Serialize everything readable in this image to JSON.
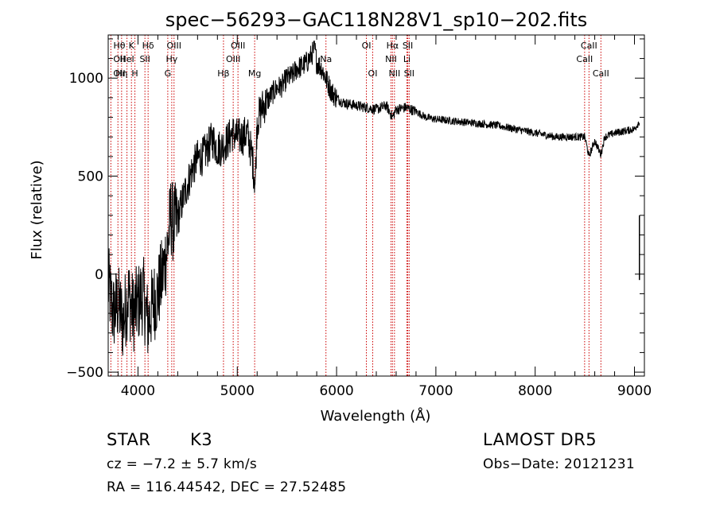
{
  "chart_data": {
    "type": "line",
    "title": "spec−56293−GAC118N28V1_sp10−202.fits",
    "xlabel": "Wavelength (Å)",
    "ylabel": "Flux (relative)",
    "xlim": [
      3700,
      9100
    ],
    "ylim": [
      -520,
      1220
    ],
    "x_ticks": [
      4000,
      5000,
      6000,
      7000,
      8000,
      9000
    ],
    "y_ticks": [
      -500,
      0,
      500,
      1000
    ],
    "x_tick_labels": [
      "4000",
      "5000",
      "6000",
      "7000",
      "8000",
      "9000"
    ],
    "y_tick_labels": [
      "−500",
      "0",
      "500",
      "1000"
    ],
    "grid": false,
    "line_color": "#000000",
    "marker_color": "#cc0000",
    "series": [
      {
        "x": [
          3700,
          3750,
          3800,
          3850,
          3900,
          3950,
          4000,
          4050,
          4100,
          4150,
          4200,
          4250,
          4300,
          4330,
          4360,
          4400,
          4450,
          4500,
          4550,
          4600,
          4650,
          4700,
          4750,
          4800,
          4850,
          4900,
          4950,
          5000,
          5050,
          5100,
          5150,
          5180,
          5200,
          5250,
          5300,
          5350,
          5400,
          5450,
          5500,
          5550,
          5600,
          5650,
          5700,
          5750,
          5780,
          5800,
          5850,
          5890,
          5950,
          6000,
          6050,
          6100,
          6200,
          6300,
          6400,
          6500,
          6563,
          6600,
          6700,
          6800,
          6900,
          7000,
          7200,
          7400,
          7600,
          7800,
          8000,
          8200,
          8400,
          8500,
          8542,
          8600,
          8662,
          8700,
          8800,
          8900,
          9000,
          9050
        ],
        "y": [
          -50,
          -200,
          -150,
          -250,
          -100,
          -200,
          -150,
          -100,
          -250,
          -150,
          -100,
          0,
          150,
          300,
          250,
          280,
          380,
          460,
          540,
          590,
          600,
          640,
          690,
          640,
          650,
          680,
          720,
          700,
          700,
          720,
          600,
          460,
          780,
          850,
          880,
          920,
          950,
          960,
          1000,
          1010,
          1050,
          1060,
          1080,
          1120,
          1150,
          1080,
          1050,
          1000,
          930,
          900,
          880,
          870,
          860,
          850,
          840,
          860,
          800,
          840,
          850,
          830,
          800,
          790,
          780,
          770,
          760,
          740,
          720,
          700,
          700,
          700,
          600,
          680,
          610,
          700,
          720,
          730,
          740,
          780
        ]
      }
    ],
    "line_markers": [
      {
        "label": "Hθ",
        "x": 3798,
        "row": 0
      },
      {
        "label": "K",
        "x": 3934,
        "row": 0
      },
      {
        "label": "Hδ",
        "x": 4102,
        "row": 0
      },
      {
        "label": "OIII",
        "x": 4363,
        "row": 0
      },
      {
        "label": "OIII",
        "x": 5007,
        "row": 0
      },
      {
        "label": "OI",
        "x": 6300,
        "row": 0
      },
      {
        "label": "Hα",
        "x": 6563,
        "row": 0
      },
      {
        "label": "SII",
        "x": 6717,
        "row": 0
      },
      {
        "label": "CaII",
        "x": 8542,
        "row": 0
      },
      {
        "label": "OII",
        "x": 3727,
        "row": 1
      },
      {
        "label": "HeI",
        "x": 3889,
        "row": 1
      },
      {
        "label": "SII",
        "x": 4070,
        "row": 1
      },
      {
        "label": "Hγ",
        "x": 4340,
        "row": 1
      },
      {
        "label": "OIII",
        "x": 4959,
        "row": 1
      },
      {
        "label": "Na",
        "x": 5893,
        "row": 1
      },
      {
        "label": "NII",
        "x": 6548,
        "row": 1
      },
      {
        "label": "Li",
        "x": 6708,
        "row": 1
      },
      {
        "label": "CaII",
        "x": 8498,
        "row": 1
      },
      {
        "label": "OII",
        "x": 3727,
        "row": 2
      },
      {
        "label": "Hη",
        "x": 3835,
        "row": 2
      },
      {
        "label": "H",
        "x": 3969,
        "row": 2
      },
      {
        "label": "G",
        "x": 4300,
        "row": 2
      },
      {
        "label": "Hβ",
        "x": 4861,
        "row": 2
      },
      {
        "label": "Mg",
        "x": 5175,
        "row": 2
      },
      {
        "label": "OI",
        "x": 6364,
        "row": 2
      },
      {
        "label": "NII",
        "x": 6583,
        "row": 2
      },
      {
        "label": "SII",
        "x": 6731,
        "row": 2
      },
      {
        "label": "CaII",
        "x": 8662,
        "row": 2
      }
    ]
  },
  "info": {
    "class_label": "STAR",
    "subclass": "K3",
    "survey": "LAMOST DR5",
    "cz_text": "cz = −7.2 ± 5.7 km/s",
    "obs_date": "Obs−Date: 20121231",
    "coords": "RA = 116.44542, DEC =  27.52485"
  }
}
